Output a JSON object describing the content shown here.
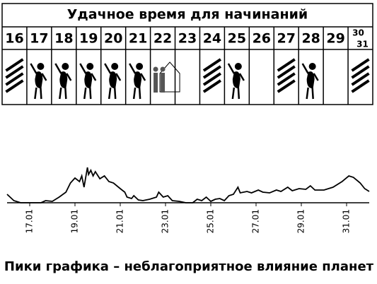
{
  "header": {
    "title": "Удачное время для начинаний"
  },
  "days": [
    "16",
    "17",
    "18",
    "19",
    "20",
    "21",
    "22",
    "23",
    "24",
    "25",
    "26",
    "27",
    "28",
    "29"
  ],
  "last_days": [
    "30",
    "31"
  ],
  "chart_data": {
    "type": "line",
    "caption": "Пики графика – неблагоприятное влияние планет",
    "color": "#000000",
    "x": [
      16.0,
      16.3,
      16.6,
      17.5,
      17.7,
      18.0,
      18.3,
      18.6,
      18.8,
      19.0,
      19.2,
      19.3,
      19.4,
      19.55,
      19.6,
      19.7,
      19.8,
      19.9,
      20.1,
      20.3,
      20.5,
      20.7,
      21.0,
      21.2,
      21.3,
      21.5,
      21.6,
      21.8,
      22.0,
      22.3,
      22.6,
      22.7,
      22.9,
      23.1,
      23.3,
      23.6,
      23.9,
      24.2,
      24.4,
      24.6,
      24.8,
      25.0,
      25.2,
      25.4,
      25.6,
      25.8,
      26.0,
      26.2,
      26.3,
      26.6,
      26.8,
      27.1,
      27.3,
      27.6,
      27.9,
      28.1,
      28.4,
      28.6,
      28.9,
      29.2,
      29.4,
      29.6,
      30.0,
      30.4,
      30.8,
      31.1,
      31.3,
      31.6,
      31.8,
      32.0
    ],
    "values": [
      12,
      3,
      0,
      0,
      3,
      2,
      8,
      15,
      28,
      35,
      30,
      38,
      22,
      50,
      40,
      46,
      38,
      44,
      34,
      38,
      30,
      28,
      20,
      15,
      8,
      6,
      10,
      4,
      3,
      5,
      8,
      15,
      8,
      10,
      3,
      2,
      0,
      0,
      5,
      3,
      8,
      2,
      5,
      6,
      3,
      10,
      12,
      22,
      14,
      16,
      14,
      18,
      15,
      14,
      18,
      16,
      22,
      17,
      20,
      19,
      24,
      18,
      18,
      22,
      30,
      38,
      36,
      28,
      20,
      16
    ],
    "xlim": [
      16,
      32
    ],
    "ylim": [
      0,
      60
    ],
    "xticks": [
      {
        "value": 17,
        "label": "17.01"
      },
      {
        "value": 19,
        "label": "19.01"
      },
      {
        "value": 21,
        "label": "21.01"
      },
      {
        "value": 23,
        "label": "23.01"
      },
      {
        "value": 25,
        "label": "25.01"
      },
      {
        "value": 27,
        "label": "27.01"
      },
      {
        "value": 29,
        "label": "29.01"
      },
      {
        "value": 31,
        "label": "31.01"
      }
    ]
  }
}
